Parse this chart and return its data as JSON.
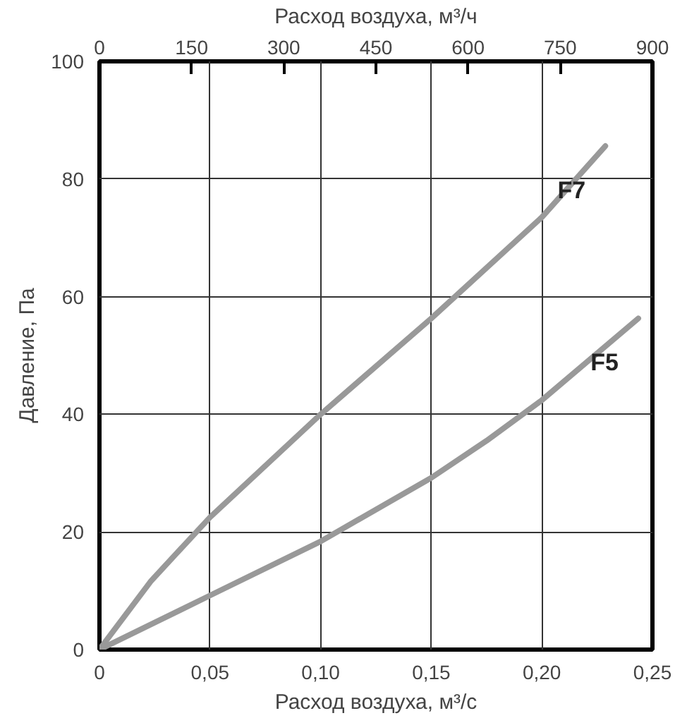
{
  "chart_data": {
    "type": "line",
    "xlabel": "Расход воздуха, м³/с",
    "x2label": "Расход воздуха, м³/ч",
    "ylabel": "Давление, Па",
    "xlim": [
      0,
      0.25
    ],
    "xticks": [
      0,
      {
        "value": 0.05,
        "label": "0,05"
      },
      {
        "value": 0.1,
        "label": "0,10"
      },
      {
        "value": 0.15,
        "label": "0,15"
      },
      {
        "value": 0.2,
        "label": "0,20"
      },
      {
        "value": 0.25,
        "label": "0,25"
      }
    ],
    "x2lim": [
      0,
      900
    ],
    "x2ticks": [
      0,
      150,
      300,
      450,
      600,
      750,
      900
    ],
    "ylim": [
      0,
      100
    ],
    "yticks": [
      0,
      20,
      40,
      60,
      80,
      100
    ],
    "grid": true,
    "legend": false,
    "marker": "none",
    "line_style": "solid",
    "series": [
      {
        "name": "F7",
        "color": "#999999",
        "x": [
          0,
          0.0234,
          0.05,
          0.1,
          0.15,
          0.2,
          0.2287
        ],
        "values": [
          0,
          11.7,
          22.5,
          40,
          56.3,
          73.5,
          85.6
        ]
      },
      {
        "name": "F5",
        "color": "#999999",
        "x": [
          0,
          0.025,
          0.05,
          0.1,
          0.15,
          0.175,
          0.2,
          0.2436
        ],
        "values": [
          0,
          4.6,
          9.2,
          18.4,
          29.2,
          35.5,
          42.4,
          56.3
        ]
      }
    ]
  }
}
